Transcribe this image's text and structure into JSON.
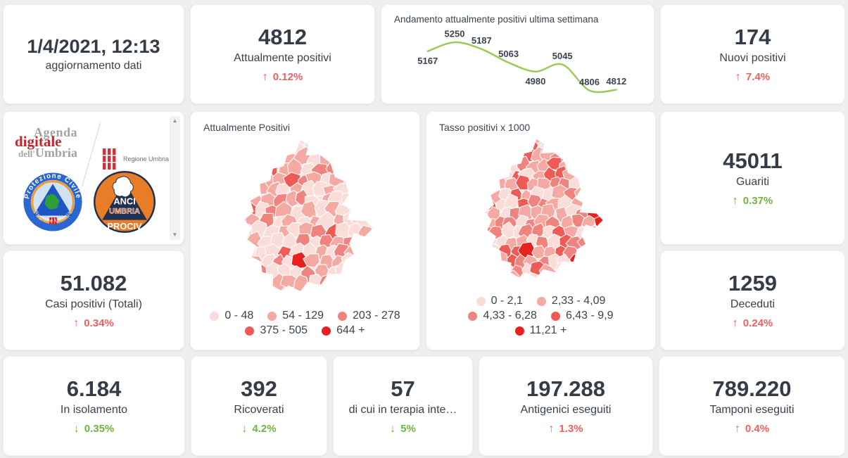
{
  "header": {
    "date": "1/4/2021, 12:13",
    "label": "aggiornamento dati"
  },
  "stats": {
    "attualmente_positivi": {
      "value": "4812",
      "label": "Attualmente positivi",
      "arrow": "↑",
      "delta": "0.12%",
      "tone": "red"
    },
    "nuovi_positivi": {
      "value": "174",
      "label": "Nuovi positivi",
      "arrow": "↑",
      "delta": "7.4%",
      "tone": "red"
    },
    "guariti": {
      "value": "45011",
      "label": "Guariti",
      "arrow": "↑",
      "delta": "0.37%",
      "tone": "green"
    },
    "casi_totali": {
      "value": "51.082",
      "label": "Casi positivi (Totali)",
      "arrow": "↑",
      "delta": "0.34%",
      "tone": "red"
    },
    "deceduti": {
      "value": "1259",
      "label": "Deceduti",
      "arrow": "↑",
      "delta": "0.24%",
      "tone": "red"
    },
    "in_isolamento": {
      "value": "6.184",
      "label": "In isolamento",
      "arrow": "↓",
      "delta": "0.35%",
      "tone": "green"
    },
    "ricoverati": {
      "value": "392",
      "label": "Ricoverati",
      "arrow": "↓",
      "delta": "4.2%",
      "tone": "green"
    },
    "terapia_intensiva": {
      "value": "57",
      "label": "di cui in terapia inte…",
      "arrow": "↓",
      "delta": "5%",
      "tone": "green"
    },
    "antigenici": {
      "value": "197.288",
      "label": "Antigenici eseguiti",
      "arrow": "↑",
      "delta": "1.3%",
      "tone": "red"
    },
    "tamponi": {
      "value": "789.220",
      "label": "Tamponi eseguiti",
      "arrow": "↑",
      "delta": "0.4%",
      "tone": "red"
    }
  },
  "chart_data": [
    {
      "type": "line",
      "title": "Andamento attualmente positivi ultima settimana",
      "values": [
        5167,
        5250,
        5187,
        5063,
        4980,
        5045,
        4806,
        4812
      ],
      "value_label_positions": [
        "below",
        "above",
        "above",
        "above",
        "below",
        "above",
        "above",
        "above"
      ],
      "line_color": "#9bcb56",
      "ylim": [
        4806,
        5250
      ],
      "grid": false,
      "axes_hidden": true
    },
    {
      "type": "choropleth",
      "title": "Attualmente Positivi",
      "region": "Umbria (comuni)",
      "legend": [
        {
          "label": "0 - 48",
          "color": "#fadcd8"
        },
        {
          "label": "54 - 129",
          "color": "#f5a9a3"
        },
        {
          "label": "203 - 278",
          "color": "#f1837e"
        },
        {
          "label": "375 - 505",
          "color": "#ee5a55"
        },
        {
          "label": "644 +",
          "color": "#e6211f"
        }
      ]
    },
    {
      "type": "choropleth",
      "title": "Tasso positivi x 1000",
      "region": "Umbria (comuni)",
      "legend": [
        {
          "label": "0 - 2,1",
          "color": "#fadcd8"
        },
        {
          "label": "2,33 - 4,09",
          "color": "#f5a9a3"
        },
        {
          "label": "4,33 - 6,28",
          "color": "#f1837e"
        },
        {
          "label": "6,43 - 9,9",
          "color": "#ee5a55"
        },
        {
          "label": "11,21 +",
          "color": "#e6211f"
        }
      ]
    }
  ],
  "logos": {
    "agenda": {
      "line1": "Agenda",
      "line2": "digitale",
      "line3_small": "dell'",
      "line3": "Umbria"
    },
    "regione": {
      "label": "Regione Umbria"
    },
    "protezione_civile": {
      "top": "Protezione Civile",
      "bottom": "Regione Umbria"
    },
    "anci": {
      "line1": "ANCI",
      "line2": "UMBRIA",
      "line3": "PROCIV"
    }
  }
}
